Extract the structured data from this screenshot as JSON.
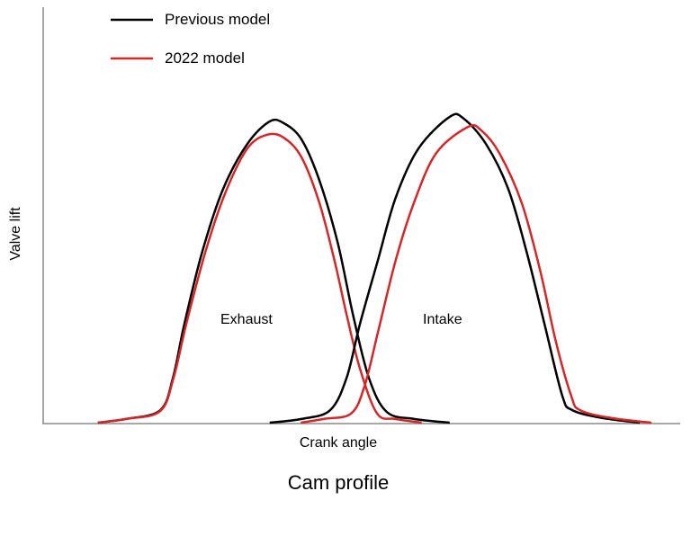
{
  "chart_data": {
    "type": "line",
    "title": "Cam profile",
    "xlabel": "Crank angle",
    "ylabel": "Valve lift",
    "xlim": [
      0,
      100
    ],
    "ylim": [
      0,
      100
    ],
    "grid": false,
    "ticks": false,
    "legend_placement": "top-left",
    "annotations": {
      "exhaust": "Exhaust",
      "intake": "Intake"
    },
    "series": [
      {
        "name": "Previous model",
        "color": "#000000",
        "curve": "Exhaust",
        "points": [
          [
            8.6,
            0
          ],
          [
            13,
            0.9
          ],
          [
            18.4,
            3
          ],
          [
            20.4,
            10.8
          ],
          [
            22.2,
            23.8
          ],
          [
            25,
            41.1
          ],
          [
            28.3,
            56.3
          ],
          [
            32.1,
            67.1
          ],
          [
            35.6,
            72.5
          ],
          [
            37.8,
            72.1
          ],
          [
            40.6,
            68.2
          ],
          [
            43.4,
            58.4
          ],
          [
            46.3,
            43.3
          ],
          [
            48.7,
            26
          ],
          [
            51.2,
            10.8
          ],
          [
            54,
            2.6
          ],
          [
            58.3,
            0.9
          ],
          [
            63.9,
            0
          ]
        ]
      },
      {
        "name": "2022 model",
        "color": "#d62728",
        "curve": "Exhaust",
        "points": [
          [
            8.6,
            0
          ],
          [
            13,
            0.9
          ],
          [
            18.4,
            2.8
          ],
          [
            20.5,
            10.8
          ],
          [
            22.5,
            23.8
          ],
          [
            25.5,
            41.1
          ],
          [
            28.6,
            55.2
          ],
          [
            32.1,
            66
          ],
          [
            35.2,
            69.3
          ],
          [
            37.8,
            68.6
          ],
          [
            40.6,
            63.9
          ],
          [
            43.4,
            53
          ],
          [
            45.8,
            39
          ],
          [
            47.7,
            26
          ],
          [
            49.8,
            13
          ],
          [
            52.5,
            2.2
          ],
          [
            55.4,
            0.9
          ],
          [
            59.5,
            0
          ]
        ]
      },
      {
        "name": "Previous model",
        "color": "#000000",
        "curve": "Intake",
        "points": [
          [
            35.6,
            0
          ],
          [
            40.6,
            0.9
          ],
          [
            45.1,
            3
          ],
          [
            47.7,
            10.8
          ],
          [
            49.8,
            23.8
          ],
          [
            52.6,
            39
          ],
          [
            55.4,
            54.1
          ],
          [
            59,
            66
          ],
          [
            63.9,
            73.6
          ],
          [
            66.1,
            73.2
          ],
          [
            69.6,
            67.1
          ],
          [
            73.1,
            56.3
          ],
          [
            76,
            41.1
          ],
          [
            78.8,
            23.8
          ],
          [
            81.6,
            6.5
          ],
          [
            83.2,
            3
          ],
          [
            88,
            1.1
          ],
          [
            93.8,
            0
          ]
        ]
      },
      {
        "name": "2022 model",
        "color": "#d62728",
        "curve": "Intake",
        "points": [
          [
            40.5,
            0
          ],
          [
            44.1,
            0.9
          ],
          [
            48.4,
            2.2
          ],
          [
            50.5,
            8.7
          ],
          [
            52.6,
            21.6
          ],
          [
            55.4,
            39
          ],
          [
            58.3,
            53
          ],
          [
            61.8,
            64.9
          ],
          [
            66.8,
            71.2
          ],
          [
            68.9,
            70.3
          ],
          [
            71.7,
            64.9
          ],
          [
            75.2,
            53
          ],
          [
            78.1,
            36.8
          ],
          [
            80.6,
            19.5
          ],
          [
            83,
            6.5
          ],
          [
            84.4,
            3
          ],
          [
            89.4,
            1.1
          ],
          [
            95.6,
            0
          ]
        ]
      }
    ],
    "legend": [
      {
        "label": "Previous model",
        "color": "#000000"
      },
      {
        "label": "2022 model",
        "color": "#d62728"
      }
    ]
  }
}
